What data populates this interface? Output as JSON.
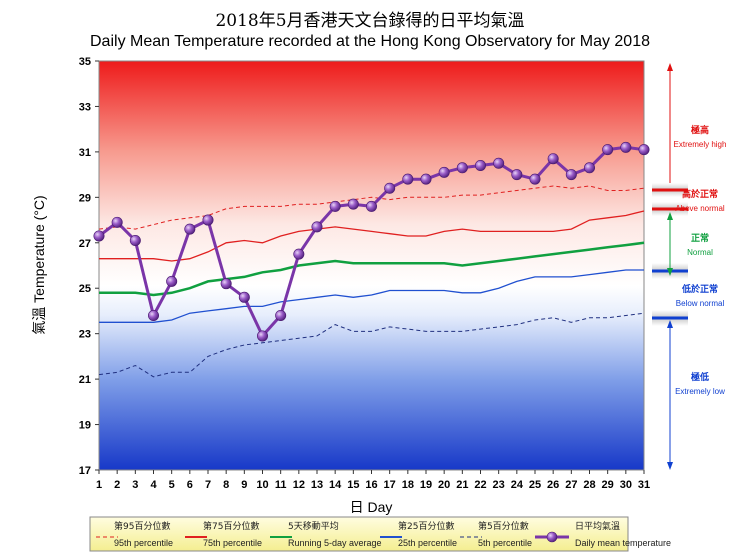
{
  "chart_data": {
    "type": "line",
    "title_zh": "2018年5月香港天文台錄得的日平均氣溫",
    "title": "Daily Mean Temperature recorded at the Hong Kong Observatory for May 2018",
    "xlabel": "日 Day",
    "ylabel": "氣溫 Temperature (°C)",
    "ylim": [
      17,
      35
    ],
    "yticks": [
      17,
      19,
      21,
      23,
      25,
      27,
      29,
      31,
      33,
      35
    ],
    "x": [
      1,
      2,
      3,
      4,
      5,
      6,
      7,
      8,
      9,
      10,
      11,
      12,
      13,
      14,
      15,
      16,
      17,
      18,
      19,
      20,
      21,
      22,
      23,
      24,
      25,
      26,
      27,
      28,
      29,
      30,
      31
    ],
    "series": [
      {
        "name_zh": "第95百分位數",
        "name": "95th percentile",
        "style": "dashed",
        "color": "#e02020",
        "values": [
          27.6,
          27.7,
          27.6,
          27.8,
          28.0,
          28.1,
          28.2,
          28.5,
          28.6,
          28.6,
          28.6,
          28.7,
          28.7,
          28.8,
          28.9,
          29.0,
          28.9,
          29.0,
          29.0,
          29.0,
          29.1,
          29.1,
          29.2,
          29.3,
          29.4,
          29.5,
          29.4,
          29.5,
          29.3,
          29.3,
          29.4
        ]
      },
      {
        "name_zh": "第75百分位數",
        "name": "75th percentile",
        "style": "solid",
        "color": "#e02020",
        "values": [
          26.3,
          26.3,
          26.3,
          26.3,
          26.2,
          26.3,
          26.6,
          27.0,
          27.1,
          27.0,
          27.3,
          27.5,
          27.6,
          27.7,
          27.6,
          27.5,
          27.4,
          27.3,
          27.3,
          27.5,
          27.6,
          27.5,
          27.5,
          27.5,
          27.5,
          27.5,
          27.6,
          28.0,
          28.1,
          28.2,
          28.4
        ]
      },
      {
        "name_zh": "5天移動平均",
        "name": "Running 5-day average",
        "style": "solid",
        "color": "#10a040",
        "values": [
          24.8,
          24.8,
          24.8,
          24.7,
          24.8,
          25.0,
          25.3,
          25.4,
          25.5,
          25.7,
          25.8,
          26.0,
          26.1,
          26.2,
          26.1,
          26.1,
          26.1,
          26.1,
          26.1,
          26.1,
          26.0,
          26.1,
          26.2,
          26.3,
          26.4,
          26.5,
          26.6,
          26.7,
          26.8,
          26.9,
          27.0
        ]
      },
      {
        "name_zh": "第25百分位數",
        "name": "25th percentile",
        "style": "solid",
        "color": "#2050d0",
        "values": [
          23.5,
          23.5,
          23.5,
          23.5,
          23.6,
          23.9,
          24.0,
          24.1,
          24.2,
          24.2,
          24.4,
          24.5,
          24.6,
          24.7,
          24.6,
          24.7,
          24.9,
          24.9,
          24.9,
          24.9,
          24.8,
          24.8,
          25.0,
          25.3,
          25.5,
          25.5,
          25.5,
          25.6,
          25.7,
          25.8,
          25.8
        ]
      },
      {
        "name_zh": "第5百分位數",
        "name": "5th percentile",
        "style": "dashed",
        "color": "#203080",
        "values": [
          21.2,
          21.3,
          21.6,
          21.1,
          21.3,
          21.3,
          22.0,
          22.3,
          22.5,
          22.6,
          22.7,
          22.8,
          22.9,
          23.4,
          23.1,
          23.1,
          23.3,
          23.2,
          23.1,
          23.1,
          23.1,
          23.2,
          23.3,
          23.4,
          23.6,
          23.7,
          23.5,
          23.7,
          23.7,
          23.8,
          23.9
        ]
      },
      {
        "name_zh": "日平均氣溫",
        "name": "Daily mean temperature",
        "style": "markers",
        "color": "#7a35a8",
        "values": [
          27.3,
          27.9,
          27.1,
          23.8,
          25.3,
          27.6,
          28.0,
          25.2,
          24.6,
          22.9,
          23.8,
          26.5,
          27.7,
          28.6,
          28.7,
          28.6,
          29.4,
          29.8,
          29.8,
          30.1,
          30.3,
          30.4,
          30.5,
          30.0,
          29.8,
          30.7,
          30.0,
          30.3,
          31.1,
          31.2,
          31.1
        ]
      }
    ],
    "categories_right": [
      {
        "zh": "極高",
        "en": "Extremely high",
        "color": "#e01010"
      },
      {
        "zh": "高於正常",
        "en": "Above normal",
        "color": "#e01010"
      },
      {
        "zh": "正常",
        "en": "Normal",
        "color": "#10a040"
      },
      {
        "zh": "低於正常",
        "en": "Below normal",
        "color": "#1040d0"
      },
      {
        "zh": "極低",
        "en": "Extremely low",
        "color": "#1040d0"
      }
    ],
    "grid": false,
    "legend_position": "bottom"
  }
}
